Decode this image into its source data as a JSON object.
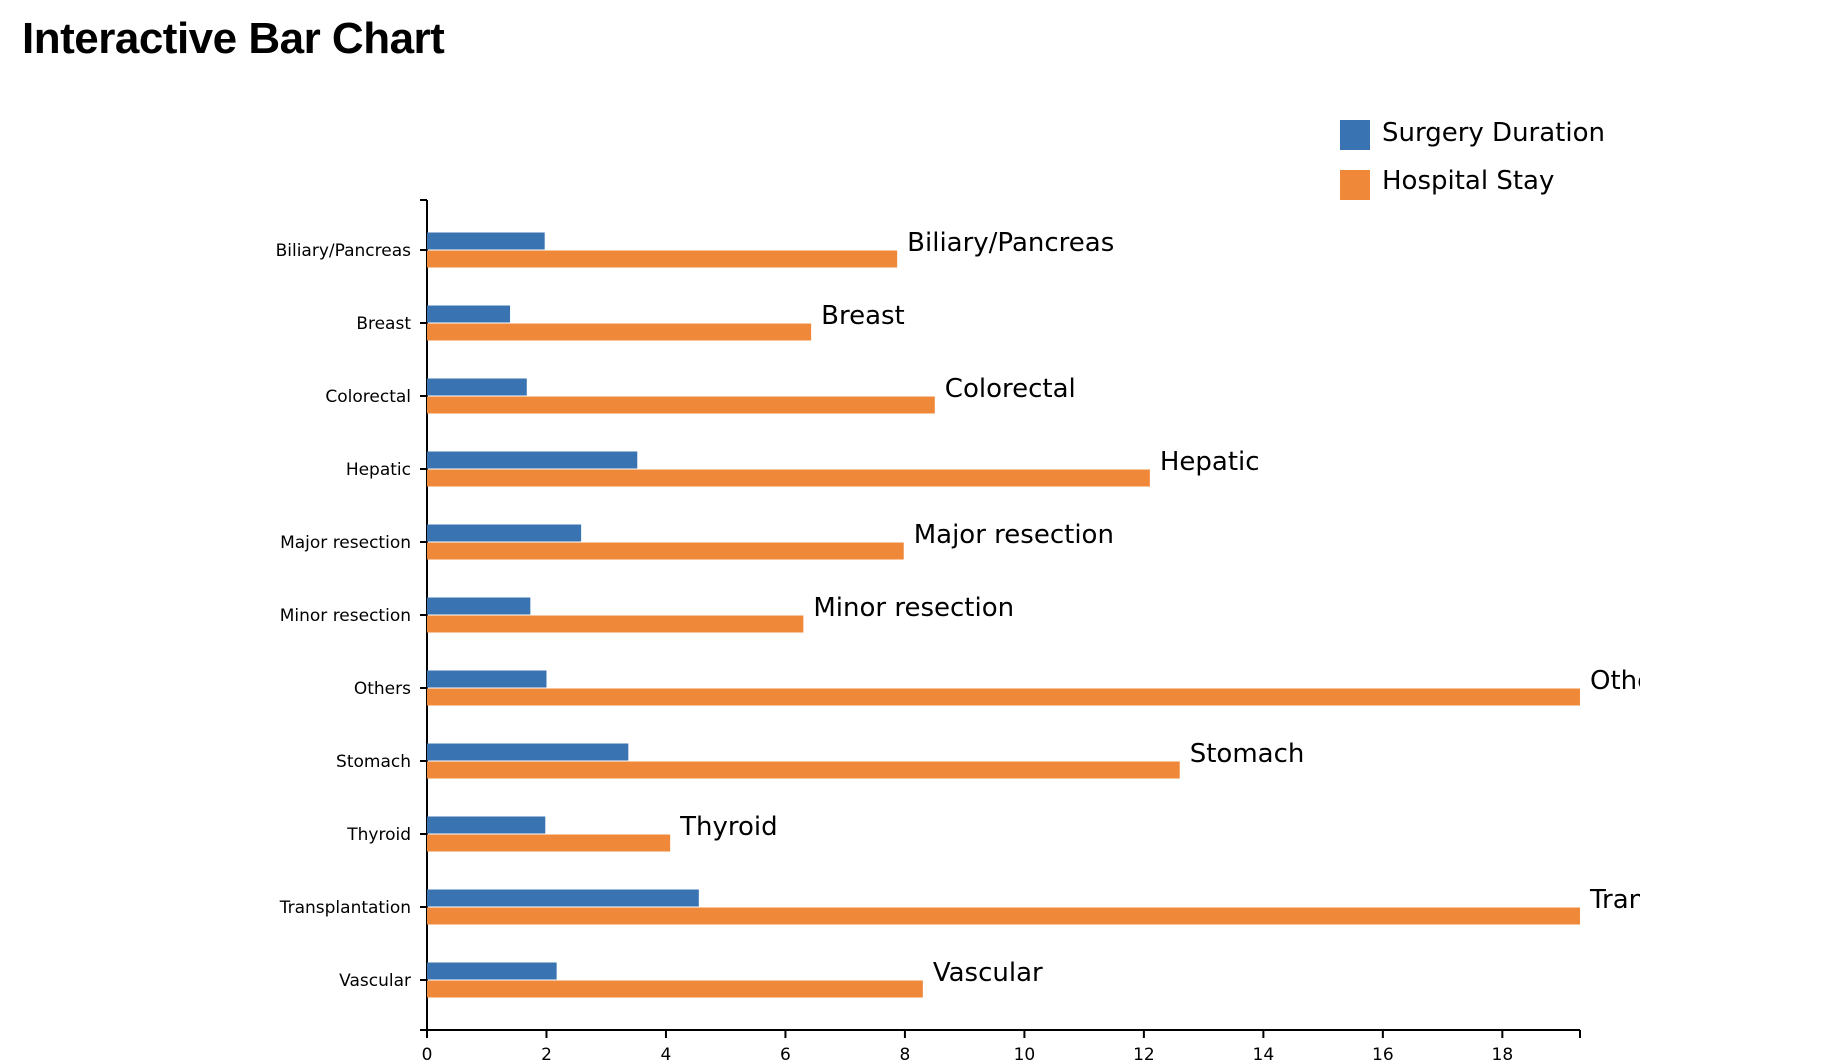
{
  "page": {
    "title": "Interactive Bar Chart"
  },
  "colors": {
    "surgery": "#3a73b2",
    "hospital": "#f0883a",
    "axis": "#000000"
  },
  "chart_data": {
    "type": "bar",
    "orientation": "horizontal",
    "title": "",
    "xlabel": "",
    "ylabel": "",
    "xlim": [
      0,
      19.3
    ],
    "x_ticks": [
      0,
      2,
      4,
      6,
      8,
      10,
      12,
      14,
      16,
      18
    ],
    "grid": false,
    "legend_position": "top-right",
    "categories": [
      "Biliary/Pancreas",
      "Breast",
      "Colorectal",
      "Hepatic",
      "Major resection",
      "Minor resection",
      "Others",
      "Stomach",
      "Thyroid",
      "Transplantation",
      "Vascular"
    ],
    "bar_labels": [
      "Biliary/Pancreas",
      "Breast",
      "Colorectal",
      "Hepatic",
      "Major resection",
      "Minor resection",
      "Othe",
      "Stomach",
      "Thyroid",
      "Tran",
      "Vascular"
    ],
    "series": [
      {
        "name": "Surgery Duration",
        "values": [
          1.97,
          1.39,
          1.67,
          3.52,
          2.58,
          1.73,
          2.0,
          3.37,
          1.98,
          4.55,
          2.17
        ]
      },
      {
        "name": "Hospital Stay",
        "values": [
          7.87,
          6.43,
          8.5,
          12.1,
          7.98,
          6.3,
          19.3,
          12.6,
          4.07,
          19.3,
          8.3
        ]
      }
    ]
  }
}
